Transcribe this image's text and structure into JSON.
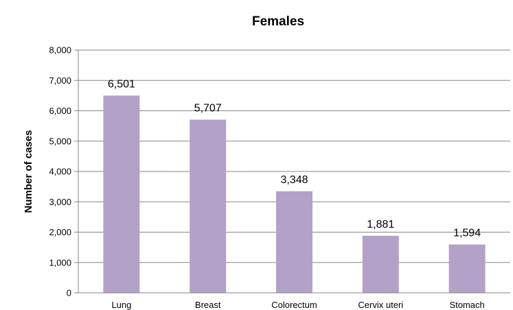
{
  "chart_data": {
    "type": "bar",
    "title": "Females",
    "xlabel": "",
    "ylabel": "Number of cases",
    "categories": [
      "Lung",
      "Breast",
      "Colorectum",
      "Cervix uteri",
      "Stomach"
    ],
    "values": [
      6501,
      5707,
      3348,
      1881,
      1594
    ],
    "data_labels": [
      "6,501",
      "5,707",
      "3,348",
      "1,881",
      "1,594"
    ],
    "ylim": [
      0,
      8000
    ],
    "yticks": [
      0,
      1000,
      2000,
      3000,
      4000,
      5000,
      6000,
      7000,
      8000
    ],
    "ytick_labels": [
      "0",
      "1,000",
      "2,000",
      "3,000",
      "4,000",
      "5,000",
      "6,000",
      "7,000",
      "8,000"
    ],
    "grid": true,
    "legend": "none",
    "bar_color": "#b3a2c7"
  }
}
